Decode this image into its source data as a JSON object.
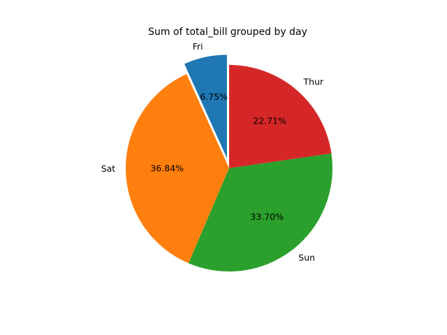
{
  "chart_data": {
    "type": "pie",
    "title": "Sum of total_bill grouped by day",
    "categories": [
      "Fri",
      "Sat",
      "Sun",
      "Thur"
    ],
    "values": [
      6.75,
      36.84,
      33.7,
      22.71
    ],
    "value_unit": "percent",
    "percent_labels": [
      "6.75%",
      "36.84%",
      "33.70%",
      "22.71%"
    ],
    "colors": [
      "#1f77b4",
      "#ff7f0e",
      "#2ca02c",
      "#d62728"
    ],
    "exploded": [
      "Fri"
    ],
    "start_angle_deg": 90,
    "direction": "counterclockwise",
    "legend": false
  }
}
